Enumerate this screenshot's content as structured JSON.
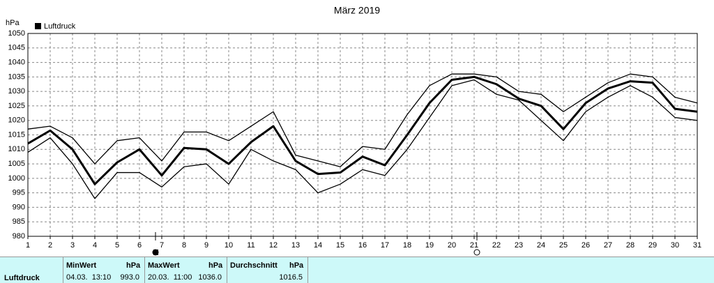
{
  "chart_data": {
    "type": "line",
    "title": "März 2019",
    "y_label": "hPa",
    "x": [
      1,
      2,
      3,
      4,
      5,
      6,
      7,
      8,
      9,
      10,
      11,
      12,
      13,
      14,
      15,
      16,
      17,
      18,
      19,
      20,
      21,
      22,
      23,
      24,
      25,
      26,
      27,
      28,
      29,
      30,
      31
    ],
    "xlim": [
      1,
      31
    ],
    "xticks": [
      1,
      2,
      3,
      4,
      5,
      6,
      7,
      8,
      9,
      10,
      11,
      12,
      13,
      14,
      15,
      16,
      17,
      18,
      19,
      20,
      21,
      22,
      23,
      24,
      25,
      26,
      27,
      28,
      29,
      30,
      31
    ],
    "ylim": [
      980,
      1050
    ],
    "yticks": [
      980,
      985,
      990,
      995,
      1000,
      1005,
      1010,
      1015,
      1020,
      1025,
      1030,
      1035,
      1040,
      1045,
      1050
    ],
    "grid": true,
    "legend": "top-left",
    "series": [
      {
        "color": "#000000",
        "values": [
          1017,
          1018,
          1014,
          1005,
          1013,
          1014,
          1006,
          1016,
          1016,
          1013,
          1018,
          1023,
          1008,
          1006,
          1004,
          1011,
          1010,
          1022,
          1032,
          1036,
          1036,
          1035,
          1030,
          1029,
          1023,
          1028,
          1033,
          1036,
          1035,
          1028,
          1026
        ]
      },
      {
        "name": "Luftdruck",
        "color": "#000000",
        "values": [
          1012,
          1016.5,
          1010,
          998,
          1005.5,
          1010,
          1001,
          1010.5,
          1010,
          1005,
          1012.5,
          1018,
          1006,
          1001.5,
          1002,
          1007.5,
          1004.5,
          1015,
          1026,
          1034,
          1035,
          1032.5,
          1027.5,
          1025,
          1017,
          1026,
          1031,
          1033.5,
          1033,
          1024,
          1023
        ]
      },
      {
        "color": "#000000",
        "values": [
          1009,
          1014,
          1005,
          993,
          1002,
          1002,
          997,
          1004,
          1005,
          998,
          1010,
          1006,
          1003,
          995,
          998,
          1003,
          1001,
          1010,
          1021,
          1032,
          1034,
          1029,
          1027,
          1020,
          1013,
          1023,
          1028,
          1032,
          1028,
          1021,
          1020
        ]
      }
    ]
  },
  "summary": {
    "label": "Luftdruck",
    "columns": [
      {
        "header": "MinWert",
        "unit": "hPa",
        "time": "04.03.  13:10",
        "value": "993.0"
      },
      {
        "header": "MaxWert",
        "unit": "hPa",
        "time": "20.03.  11:00",
        "value": "1036.0"
      },
      {
        "header": "Durchschnitt",
        "unit": "hPa",
        "value": "1016.5"
      }
    ]
  }
}
